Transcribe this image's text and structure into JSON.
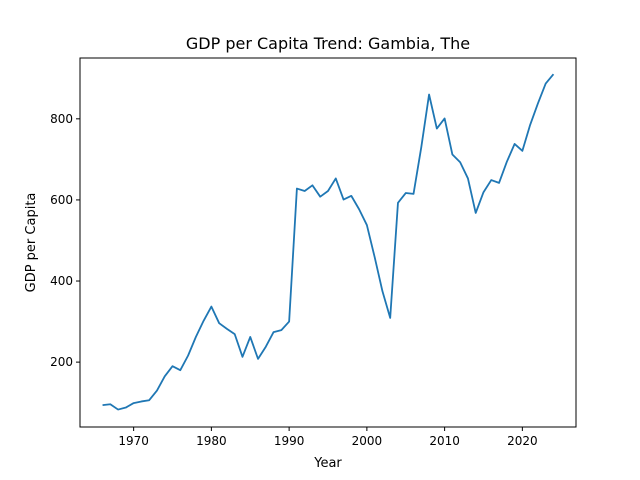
{
  "chart_data": {
    "type": "line",
    "title": "GDP per Capita Trend: Gambia, The",
    "xlabel": "Year",
    "ylabel": "GDP per Capita",
    "xlim": [
      1963.1,
      2026.9
    ],
    "ylim": [
      40,
      950
    ],
    "xticks": [
      1970,
      1980,
      1990,
      2000,
      2010,
      2020
    ],
    "yticks": [
      200,
      400,
      600,
      800
    ],
    "grid": false,
    "legend": "none",
    "line_color": "#1f77b4",
    "series": [
      {
        "x": [
          1966,
          1967,
          1968,
          1969,
          1970,
          1971,
          1972,
          1973,
          1974,
          1975,
          1976,
          1977,
          1978,
          1979,
          1980,
          1981,
          1982,
          1983,
          1984,
          1985,
          1986,
          1987,
          1988,
          1989,
          1990,
          1991,
          1992,
          1993,
          1994,
          1995,
          1996,
          1997,
          1998,
          1999,
          2000,
          2001,
          2002,
          2003,
          2004,
          2005,
          2006,
          2007,
          2008,
          2009,
          2010,
          2011,
          2012,
          2013,
          2014,
          2015,
          2016,
          2017,
          2018,
          2019,
          2020,
          2021,
          2022,
          2023,
          2024
        ],
        "values": [
          94,
          96,
          83,
          88,
          99,
          103,
          106,
          130,
          165,
          190,
          180,
          216,
          262,
          302,
          337,
          296,
          282,
          269,
          213,
          262,
          208,
          238,
          274,
          279,
          300,
          628,
          622,
          636,
          608,
          622,
          653,
          601,
          610,
          577,
          538,
          459,
          375,
          309,
          593,
          617,
          615,
          730,
          860,
          776,
          801,
          712,
          693,
          653,
          568,
          619,
          649,
          642,
          694,
          738,
          721,
          785,
          838,
          887,
          910
        ]
      }
    ]
  }
}
